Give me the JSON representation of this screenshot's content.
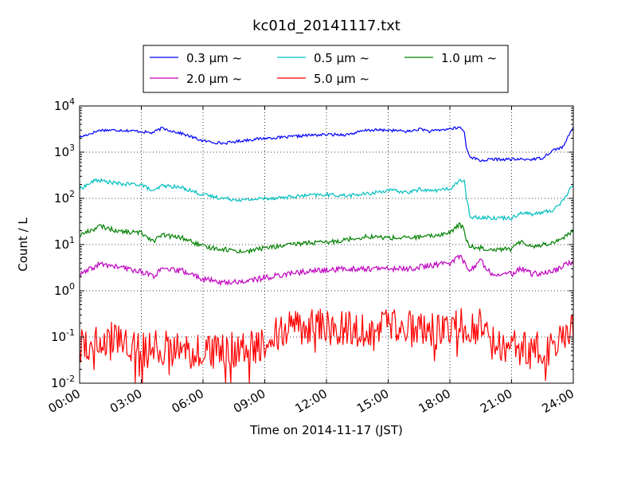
{
  "chart_data": {
    "type": "line",
    "title": "kc01d_20141117.txt",
    "xlabel": "Time on 2014-11-17 (JST)",
    "ylabel": "Count / L",
    "yscale": "log",
    "ylim": [
      0.01,
      10000
    ],
    "xlim": [
      0,
      24
    ],
    "x_ticks": [
      {
        "value": 0,
        "label": "00:00"
      },
      {
        "value": 3,
        "label": "03:00"
      },
      {
        "value": 6,
        "label": "06:00"
      },
      {
        "value": 9,
        "label": "09:00"
      },
      {
        "value": 12,
        "label": "12:00"
      },
      {
        "value": 15,
        "label": "15:00"
      },
      {
        "value": 18,
        "label": "18:00"
      },
      {
        "value": 21,
        "label": "21:00"
      },
      {
        "value": 24,
        "label": "24:00"
      }
    ],
    "y_ticks": [
      {
        "value": 0.01,
        "base": "10",
        "exp": "-2"
      },
      {
        "value": 0.1,
        "base": "10",
        "exp": "-1"
      },
      {
        "value": 1,
        "base": "10",
        "exp": "0"
      },
      {
        "value": 10,
        "base": "10",
        "exp": "1"
      },
      {
        "value": 100,
        "base": "10",
        "exp": "2"
      },
      {
        "value": 1000,
        "base": "10",
        "exp": "3"
      },
      {
        "value": 10000,
        "base": "10",
        "exp": "4"
      }
    ],
    "grid": true,
    "legend_position": "top-center",
    "legend_columns": 3,
    "series": [
      {
        "name": "0.3 μm ~",
        "color": "#0000ff",
        "noise": 0.03,
        "points": [
          [
            0,
            2100
          ],
          [
            1,
            3000
          ],
          [
            2,
            3000
          ],
          [
            3,
            2800
          ],
          [
            3.5,
            2600
          ],
          [
            4,
            3300
          ],
          [
            5,
            2500
          ],
          [
            6,
            1750
          ],
          [
            7,
            1550
          ],
          [
            8,
            1800
          ],
          [
            9,
            2000
          ],
          [
            10,
            2100
          ],
          [
            11,
            2300
          ],
          [
            12,
            2400
          ],
          [
            13,
            2400
          ],
          [
            14,
            3000
          ],
          [
            15,
            3000
          ],
          [
            16,
            2800
          ],
          [
            16.6,
            3200
          ],
          [
            17,
            2800
          ],
          [
            18,
            3200
          ],
          [
            18.5,
            3400
          ],
          [
            18.7,
            2800
          ],
          [
            18.8,
            1200
          ],
          [
            19,
            800
          ],
          [
            19.5,
            650
          ],
          [
            20,
            700
          ],
          [
            21,
            700
          ],
          [
            22,
            700
          ],
          [
            22.5,
            750
          ],
          [
            23,
            1100
          ],
          [
            23.5,
            1300
          ],
          [
            24,
            3500
          ]
        ]
      },
      {
        "name": "0.5 μm ~",
        "color": "#00bfbf",
        "noise": 0.04,
        "points": [
          [
            0,
            160
          ],
          [
            0.8,
            250
          ],
          [
            2,
            205
          ],
          [
            3,
            200
          ],
          [
            3.6,
            140
          ],
          [
            4,
            190
          ],
          [
            5,
            170
          ],
          [
            6,
            120
          ],
          [
            7,
            100
          ],
          [
            8,
            92
          ],
          [
            9,
            100
          ],
          [
            10,
            105
          ],
          [
            11,
            115
          ],
          [
            12,
            120
          ],
          [
            13,
            115
          ],
          [
            14,
            125
          ],
          [
            15,
            150
          ],
          [
            16,
            135
          ],
          [
            16.6,
            160
          ],
          [
            17,
            145
          ],
          [
            18,
            160
          ],
          [
            18.5,
            250
          ],
          [
            18.7,
            230
          ],
          [
            18.8,
            100
          ],
          [
            19,
            40
          ],
          [
            20,
            38
          ],
          [
            21,
            38
          ],
          [
            21.5,
            50
          ],
          [
            22,
            45
          ],
          [
            23,
            55
          ],
          [
            23.5,
            90
          ],
          [
            24,
            200
          ]
        ]
      },
      {
        "name": "1.0 μm ~",
        "color": "#008000",
        "noise": 0.05,
        "points": [
          [
            0,
            16
          ],
          [
            1,
            25
          ],
          [
            2,
            19
          ],
          [
            3,
            18
          ],
          [
            3.6,
            12
          ],
          [
            4,
            16
          ],
          [
            5,
            14
          ],
          [
            6,
            9
          ],
          [
            7,
            8
          ],
          [
            8,
            7
          ],
          [
            9,
            8.5
          ],
          [
            10,
            9.5
          ],
          [
            11,
            11
          ],
          [
            12,
            11
          ],
          [
            13,
            13
          ],
          [
            14,
            15
          ],
          [
            15,
            14
          ],
          [
            16,
            14
          ],
          [
            17,
            15
          ],
          [
            18,
            18
          ],
          [
            18.5,
            28
          ],
          [
            18.7,
            20
          ],
          [
            18.8,
            12
          ],
          [
            19,
            9
          ],
          [
            20,
            8
          ],
          [
            21,
            8
          ],
          [
            21.5,
            12
          ],
          [
            22,
            9
          ],
          [
            23,
            11
          ],
          [
            23.5,
            14
          ],
          [
            24,
            20
          ]
        ]
      },
      {
        "name": "2.0 μm ~",
        "color": "#bf00bf",
        "noise": 0.06,
        "points": [
          [
            0,
            2.2
          ],
          [
            1,
            3.8
          ],
          [
            2,
            3.2
          ],
          [
            3,
            2.6
          ],
          [
            3.6,
            2.1
          ],
          [
            4,
            2.9
          ],
          [
            5,
            2.7
          ],
          [
            6,
            1.8
          ],
          [
            7,
            1.5
          ],
          [
            8,
            1.6
          ],
          [
            9,
            1.9
          ],
          [
            10,
            2.3
          ],
          [
            11,
            2.6
          ],
          [
            12,
            2.8
          ],
          [
            13,
            3
          ],
          [
            14,
            3
          ],
          [
            15,
            3
          ],
          [
            16,
            3
          ],
          [
            17,
            3.5
          ],
          [
            18,
            4
          ],
          [
            18.5,
            5.8
          ],
          [
            18.7,
            4
          ],
          [
            19,
            2.8
          ],
          [
            19.5,
            4.5
          ],
          [
            20,
            2.4
          ],
          [
            21,
            2.3
          ],
          [
            21.5,
            3
          ],
          [
            22,
            2.3
          ],
          [
            23,
            2.6
          ],
          [
            24,
            4.4
          ]
        ]
      },
      {
        "name": "5.0 μm ~",
        "color": "#ff0000",
        "noise": 0.4,
        "points": [
          [
            0,
            0.06
          ],
          [
            1,
            0.08
          ],
          [
            2,
            0.1
          ],
          [
            3,
            0.05
          ],
          [
            4,
            0.06
          ],
          [
            5,
            0.05
          ],
          [
            6,
            0.05
          ],
          [
            7,
            0.05
          ],
          [
            8,
            0.06
          ],
          [
            9,
            0.07
          ],
          [
            9.5,
            0.12
          ],
          [
            10,
            0.15
          ],
          [
            11,
            0.17
          ],
          [
            12,
            0.16
          ],
          [
            13,
            0.15
          ],
          [
            14,
            0.14
          ],
          [
            15,
            0.16
          ],
          [
            16,
            0.15
          ],
          [
            17,
            0.14
          ],
          [
            18,
            0.15
          ],
          [
            18.5,
            0.2
          ],
          [
            19,
            0.12
          ],
          [
            19.5,
            0.25
          ],
          [
            20,
            0.08
          ],
          [
            21,
            0.06
          ],
          [
            22,
            0.05
          ],
          [
            23,
            0.06
          ],
          [
            24,
            0.15
          ]
        ]
      }
    ]
  }
}
